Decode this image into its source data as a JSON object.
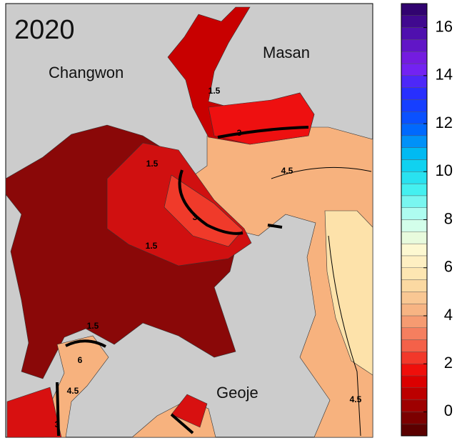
{
  "title": "2020",
  "places": [
    "Changwon",
    "Masan",
    "Geoje"
  ],
  "contour_labels": [
    "1.5",
    "3",
    "4.5",
    "1.5",
    "3",
    "1.5",
    "1.5",
    "6",
    "4.5",
    "3",
    "4.5"
  ],
  "colorbar": {
    "lim": [
      -1,
      17
    ],
    "step": 0.5,
    "ticks": [
      0,
      2,
      4,
      6,
      8,
      10,
      12,
      14,
      16
    ],
    "colors": [
      "#4a0000",
      "#a00000",
      "#ee0000",
      "#f56a50",
      "#f6b080",
      "#fce0a8",
      "#fff8d0",
      "#c8fff0",
      "#40f0f0",
      "#00c8f0",
      "#0060ff",
      "#2030ff",
      "#8020f0",
      "#5010b0",
      "#2a0060"
    ]
  }
}
